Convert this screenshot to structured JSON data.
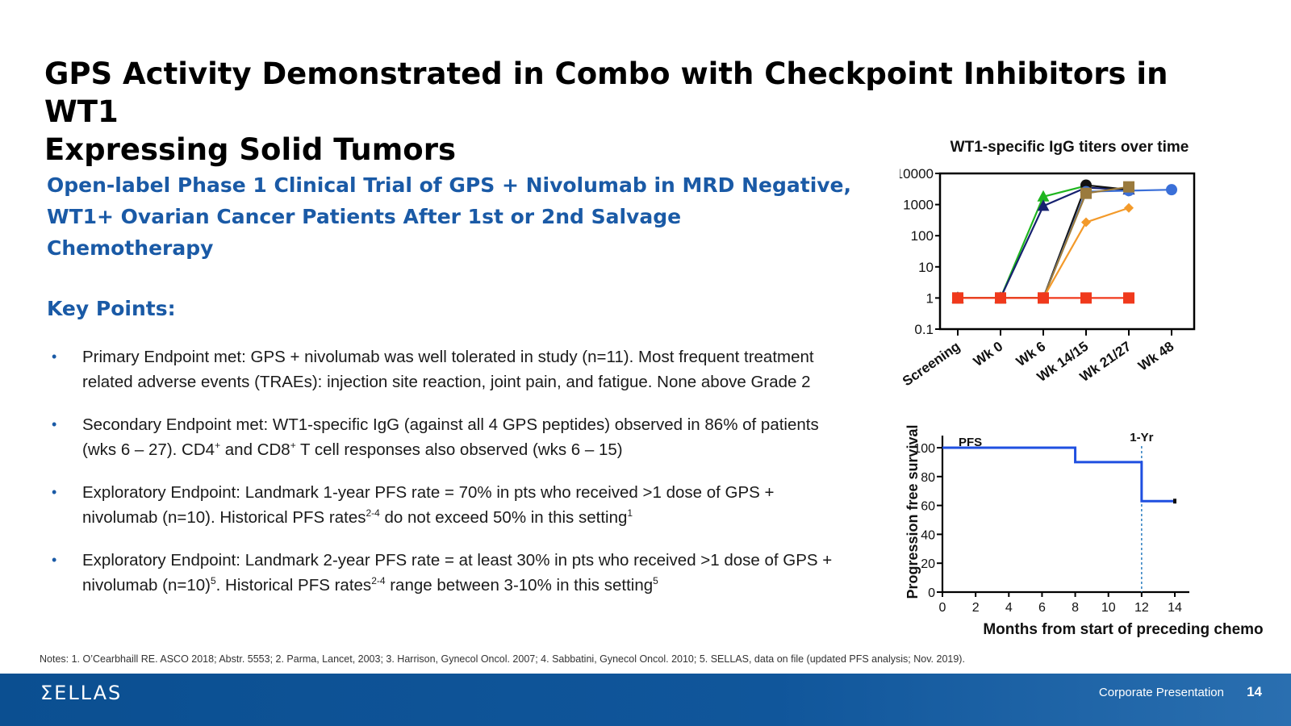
{
  "slide": {
    "title_line1": "GPS Activity Demonstrated in Combo with Checkpoint Inhibitors in WT1",
    "title_line2": "Expressing Solid Tumors",
    "subtitle_line1": "Open-label Phase 1 Clinical Trial of GPS + Nivolumab in MRD Negative,",
    "subtitle_line2": "WT1+ Ovarian Cancer Patients After 1st or 2nd Salvage Chemotherapy",
    "key_points_heading": "Key Points:",
    "bullet_marker": "•",
    "bullets": [
      {
        "l1": "Primary Endpoint met: GPS + nivolumab was well tolerated in study (n=11). Most frequent treatment",
        "l2": "related adverse events (TRAEs): injection site reaction, joint pain, and fatigue. None above Grade 2"
      },
      {
        "l1a": "Secondary Endpoint met: WT1-specific IgG (against all 4 GPS peptides) observed in 86% of patients",
        "l2a": "(wks 6 – 27). CD4",
        "sup1": "+",
        "l2b": " and CD8",
        "sup2": "+",
        "l2c": " T cell responses also observed (wks 6 – 15)"
      },
      {
        "l1": "Exploratory Endpoint: Landmark 1-year PFS rate = 70% in pts who received >1 dose of GPS +",
        "l2a": "nivolumab (n=10). Historical PFS rates",
        "sup1": "2-4",
        "l2b": " do not exceed 50% in this setting",
        "sup2": "1"
      },
      {
        "l1": "Exploratory Endpoint: Landmark 2-year PFS rate = at least 30% in pts who received >1 dose of GPS +",
        "l2a": "nivolumab (n=10)",
        "sup1": "5",
        "l2b": ". Historical PFS rates",
        "sup2": "2-4",
        "l2c": " range between 3-10% in this setting",
        "sup3": "5"
      }
    ],
    "notes": "Notes: 1. O’Cearbhaill RE. ASCO 2018; Abstr. 5553; 2. Parma, Lancet, 2003;  3. Harrison, Gynecol Oncol. 2007; 4. Sabbatini, Gynecol Oncol. 2010; 5. SELLAS, data on file (updated PFS analysis; Nov. 2019).",
    "logo": "ΣELLAS",
    "footer_label": "Corporate Presentation",
    "page_number": "14"
  },
  "chart_data": [
    {
      "type": "line",
      "title": "WT1-specific IgG titers over time",
      "y_scale": "log",
      "ylim": [
        0.1,
        10000
      ],
      "y_ticks": [
        "0.1",
        "1",
        "10",
        "100",
        "1000",
        "10000"
      ],
      "categories": [
        "Screening",
        "Wk 0",
        "Wk 6",
        "Wk 14/15",
        "Wk 21/27",
        "Wk 48"
      ],
      "series": [
        {
          "color": "#1fb51f",
          "marker": "triangle",
          "values": [
            1,
            1,
            1800,
            4000,
            null,
            null
          ]
        },
        {
          "color": "#16216f",
          "marker": "triangle",
          "values": [
            1,
            1,
            900,
            3500,
            3000,
            null
          ]
        },
        {
          "color": "#111111",
          "marker": "circle",
          "values": [
            1,
            1,
            1,
            4200,
            3000,
            null
          ]
        },
        {
          "color": "#3a6fd8",
          "marker": "circle",
          "values": [
            1,
            1,
            1,
            2600,
            2800,
            3000
          ]
        },
        {
          "color": "#9a7a3d",
          "marker": "square",
          "values": [
            1,
            1,
            1,
            2300,
            3700,
            null
          ]
        },
        {
          "color": "#f39a2a",
          "marker": "diamond",
          "values": [
            1,
            1,
            1,
            270,
            780,
            null
          ]
        },
        {
          "color": "#f0391c",
          "marker": "square",
          "values": [
            1,
            1,
            1,
            1,
            1,
            null
          ]
        }
      ]
    },
    {
      "type": "line",
      "ylabel": "Progression free survival",
      "xlabel": "Months from start of preceding chemo",
      "xlim": [
        0,
        14
      ],
      "ylim": [
        0,
        100
      ],
      "x_ticks": [
        "0",
        "2",
        "4",
        "6",
        "8",
        "10",
        "12",
        "14"
      ],
      "y_ticks": [
        "0",
        "20",
        "40",
        "60",
        "80",
        "100"
      ],
      "series": [
        {
          "name": "PFS",
          "color": "#1f4fe0",
          "step": true,
          "x": [
            0,
            8,
            8,
            12,
            12,
            14
          ],
          "y": [
            100,
            100,
            90,
            90,
            63,
            63
          ]
        }
      ],
      "reference_line": {
        "x": 12,
        "label": "1-Yr"
      }
    }
  ]
}
